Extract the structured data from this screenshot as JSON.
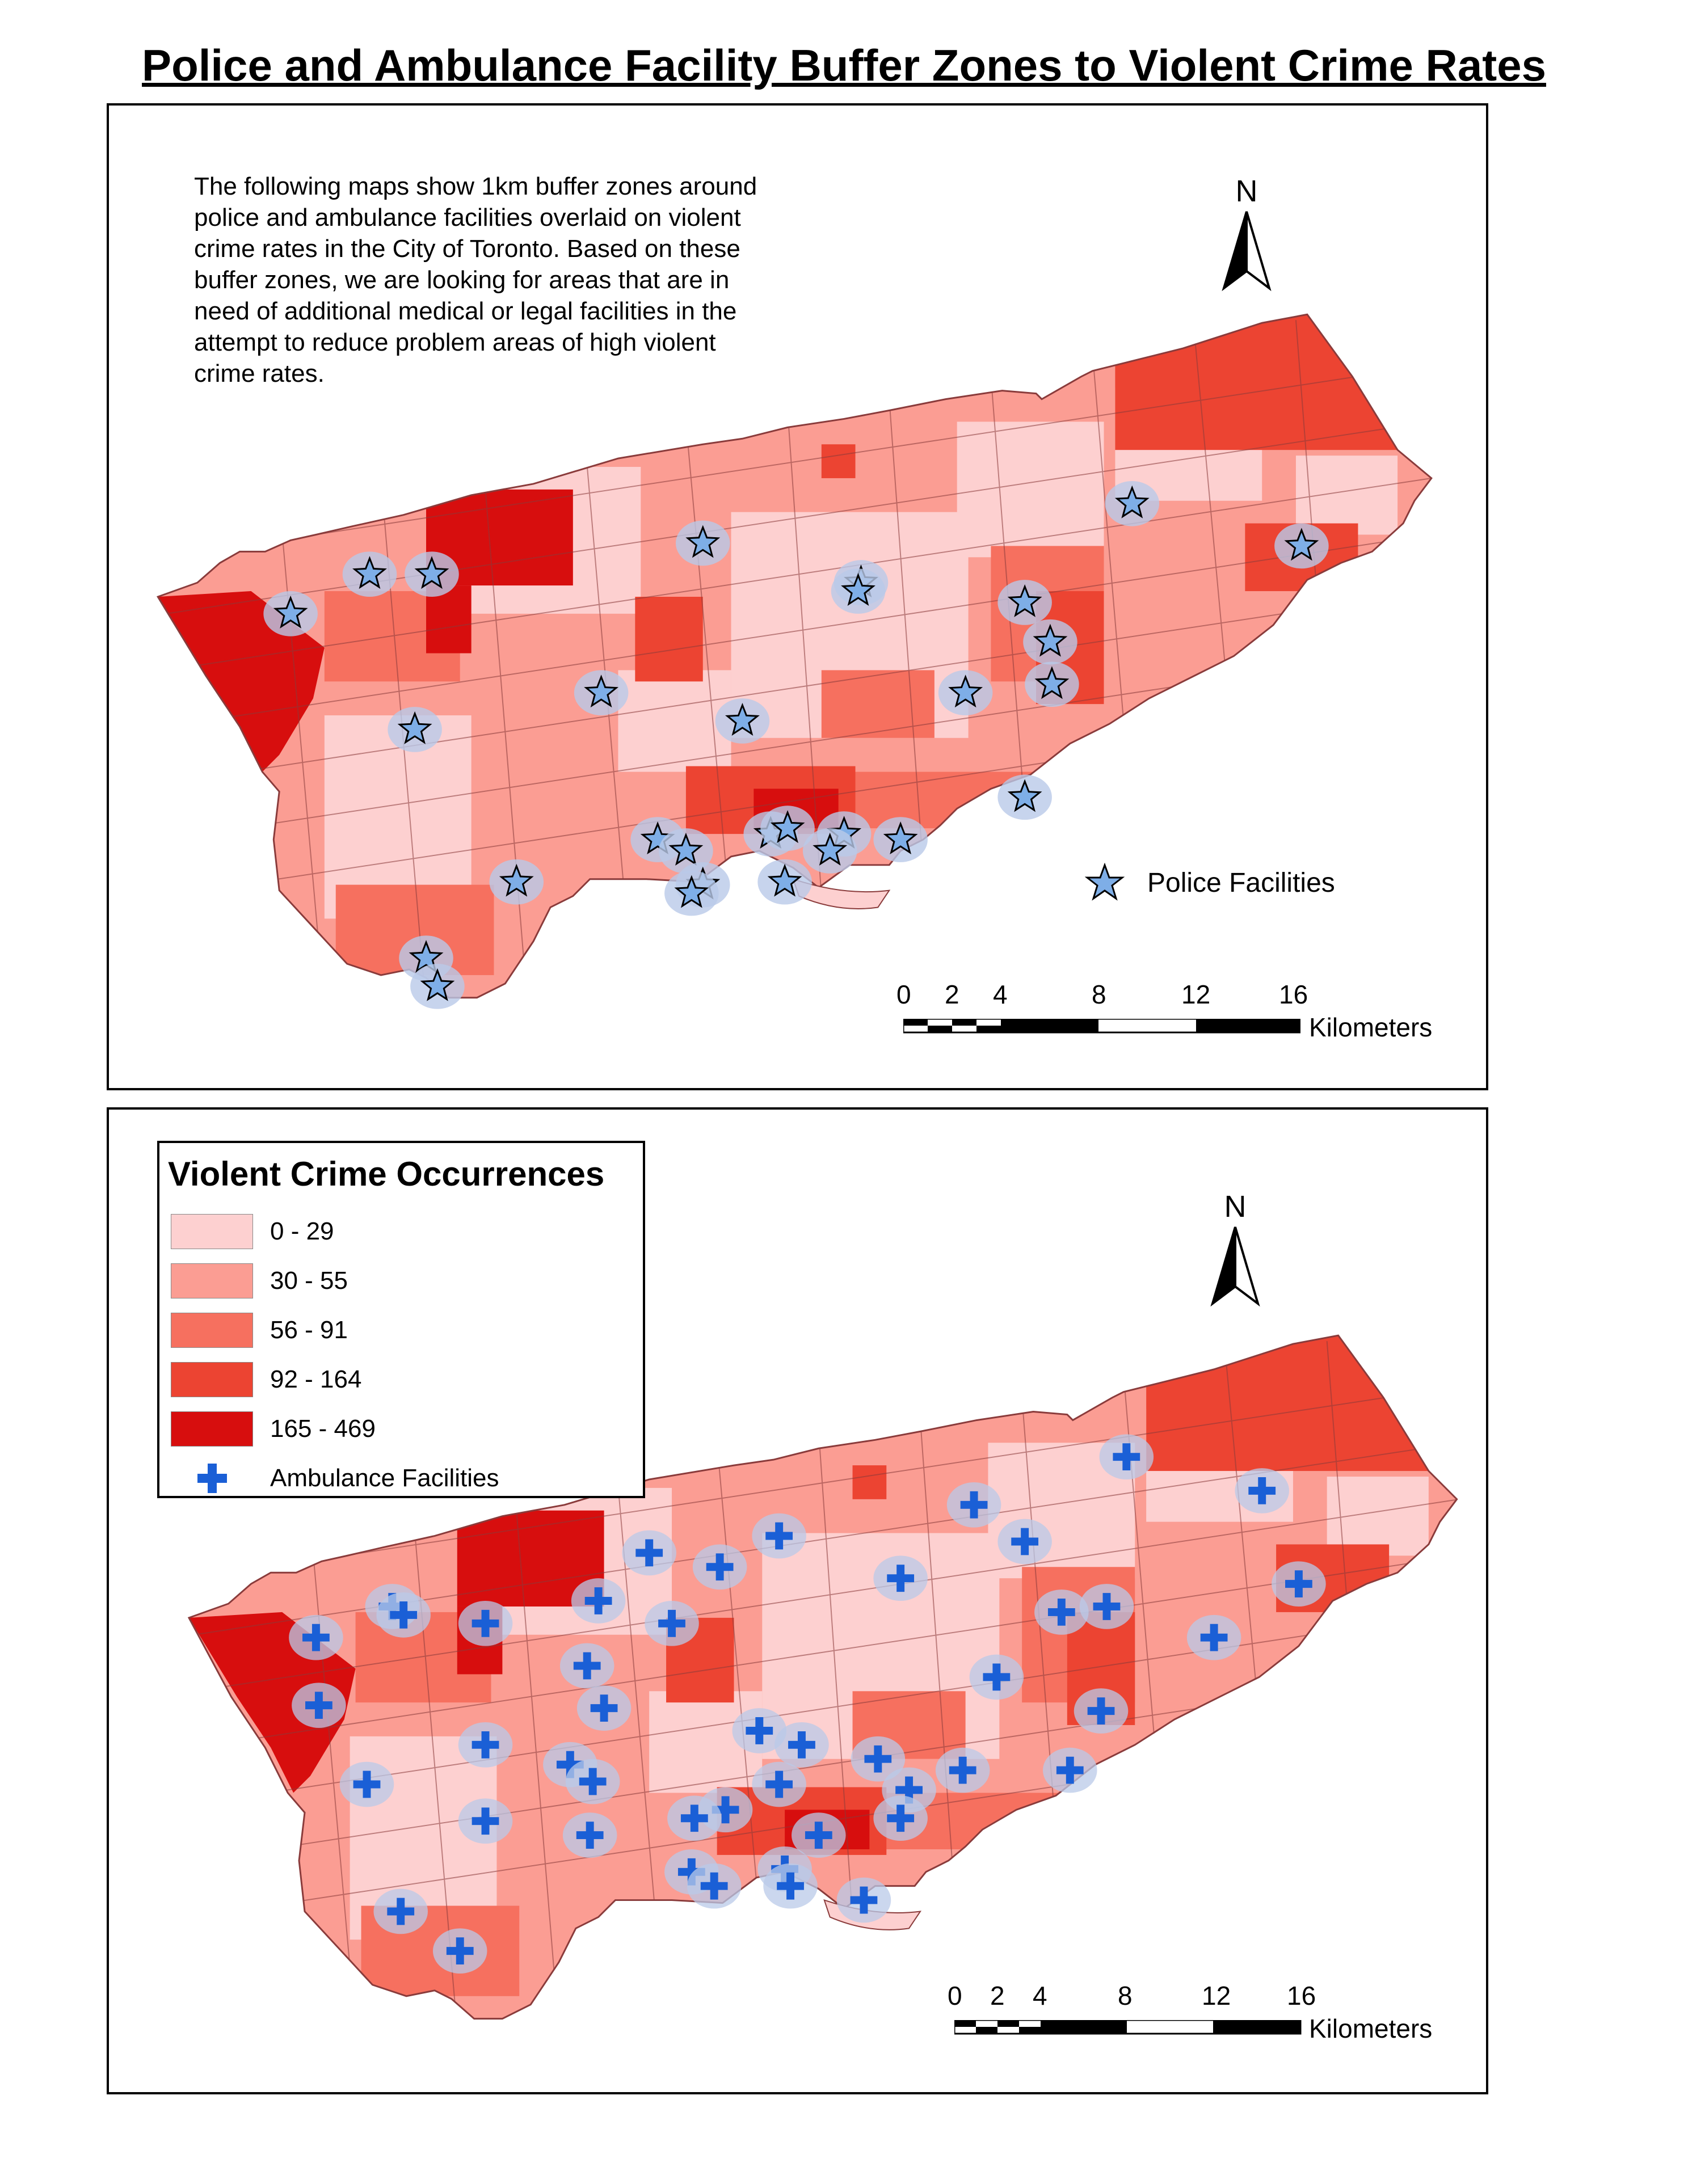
{
  "title": "Police and Ambulance Facility Buffer Zones to Violent Crime Rates",
  "top_map": {
    "description": "The following maps show 1km buffer zones around police and ambulance facilities overlaid on violent crime rates in the City of Toronto. Based on these buffer zones, we are looking for areas that are in need of additional medical or legal facilities in the attempt to reduce problem areas of high violent crime rates.",
    "north_label": "N",
    "legend_label": "Police Facilities",
    "scale": {
      "ticks": [
        "0",
        "2",
        "4",
        "8",
        "12",
        "16"
      ],
      "units": "Kilometers"
    }
  },
  "bottom_map": {
    "north_label": "N",
    "legend": {
      "title": "Violent Crime Occurrences",
      "classes": [
        {
          "label": "0 - 29",
          "color": "#fdd0d0"
        },
        {
          "label": "30 - 55",
          "color": "#fb9d93"
        },
        {
          "label": "56 - 91",
          "color": "#f6705f"
        },
        {
          "label": "92 - 164",
          "color": "#ec4432"
        },
        {
          "label": "165 - 469",
          "color": "#d70e0e"
        }
      ],
      "ambulance_label": "Ambulance Facilities"
    },
    "scale": {
      "ticks": [
        "0",
        "2",
        "4",
        "8",
        "12",
        "16"
      ],
      "units": "Kilometers"
    }
  },
  "colors": {
    "star_fill": "#7eaee7",
    "cross_fill": "#1a5fd6",
    "buffer_fill": "#b9c9e8",
    "boundary": "#8a3b3b"
  },
  "icons": [
    "police-star-icon",
    "ambulance-cross-icon",
    "north-arrow-icon"
  ]
}
